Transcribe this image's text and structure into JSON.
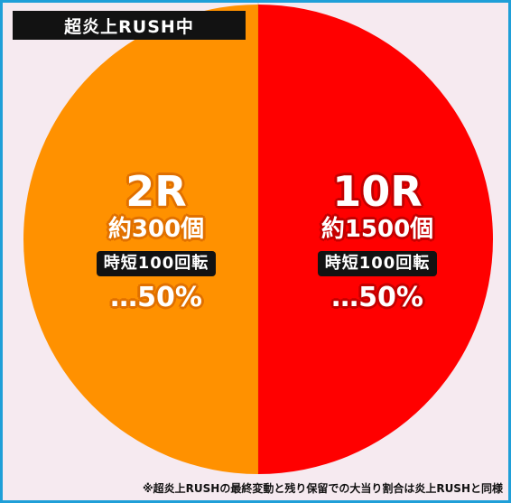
{
  "title": "超炎上RUSH中",
  "chart_data": {
    "type": "pie",
    "title": "超炎上RUSH中",
    "slices": [
      {
        "round": "2R",
        "balls": "約300個",
        "jitan": "時短100回転",
        "share_label": "…50%",
        "value": 50,
        "color": "#ff9100"
      },
      {
        "round": "10R",
        "balls": "約1500個",
        "jitan": "時短100回転",
        "share_label": "…50%",
        "value": 50,
        "color": "#ff0000"
      }
    ]
  },
  "footnote": "※超炎上RUSHの最終変動と残り保留での大当り割合は炎上RUSHと同様",
  "colors": {
    "background": "#f6eaf0",
    "border": "#1f9fd8",
    "label_bar": "#121212"
  }
}
